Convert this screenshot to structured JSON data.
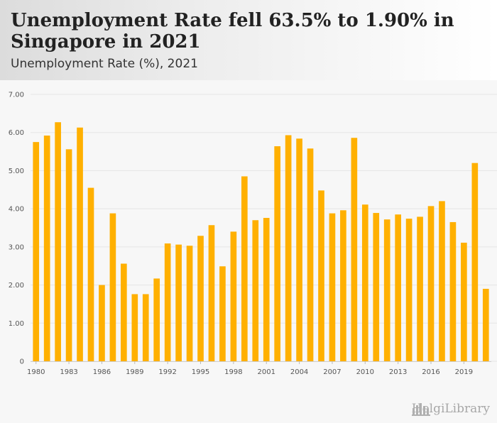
{
  "header": {
    "title": "Unemployment Rate fell 63.5% to 1.90% in Singapore in 2021",
    "subtitle": "Unemployment Rate (%), 2021"
  },
  "logo": {
    "text": "HelgiLibrary"
  },
  "colors": {
    "bar": "#FFB000",
    "grid": "#e6e6e6",
    "axis_text": "#555555"
  },
  "chart_data": {
    "type": "bar",
    "title": "Unemployment Rate (%), 2021",
    "xlabel": "",
    "ylabel": "",
    "ylim": [
      0,
      7
    ],
    "yticks": [
      "0",
      "1.00",
      "2.00",
      "3.00",
      "4.00",
      "5.00",
      "6.00",
      "7.00"
    ],
    "xtick_labels": [
      "1980",
      "1983",
      "1986",
      "1989",
      "1992",
      "1995",
      "1998",
      "2001",
      "2004",
      "2007",
      "2010",
      "2013",
      "2016",
      "2019"
    ],
    "categories": [
      "1980",
      "1981",
      "1982",
      "1983",
      "1984",
      "1985",
      "1986",
      "1987",
      "1988",
      "1989",
      "1990",
      "1991",
      "1992",
      "1993",
      "1994",
      "1995",
      "1996",
      "1997",
      "1998",
      "1999",
      "2000",
      "2001",
      "2002",
      "2003",
      "2004",
      "2005",
      "2006",
      "2007",
      "2008",
      "2009",
      "2010",
      "2011",
      "2012",
      "2013",
      "2014",
      "2015",
      "2016",
      "2017",
      "2018",
      "2019",
      "2020",
      "2021"
    ],
    "values": [
      5.75,
      5.92,
      6.27,
      5.56,
      6.13,
      4.55,
      2.0,
      3.88,
      2.56,
      1.76,
      1.76,
      2.17,
      3.09,
      3.06,
      3.03,
      3.29,
      3.57,
      2.49,
      3.4,
      4.85,
      3.7,
      3.76,
      5.64,
      5.93,
      5.84,
      5.58,
      4.48,
      3.88,
      3.96,
      5.86,
      4.11,
      3.89,
      3.72,
      3.85,
      3.74,
      3.79,
      4.07,
      4.2,
      3.65,
      3.11,
      5.2,
      1.9
    ]
  }
}
